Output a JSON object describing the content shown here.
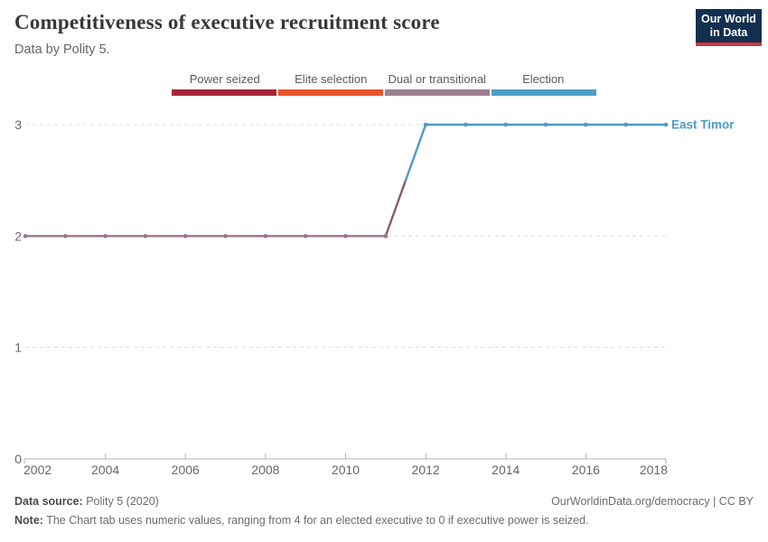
{
  "header": {
    "title": "Competitiveness of executive recruitment score",
    "subtitle": "Data by Polity 5.",
    "logo": {
      "line1": "Our World",
      "line2": "in Data",
      "bg": "#12304f",
      "stripe": "#d13640"
    }
  },
  "legend": {
    "items": [
      {
        "label": "Power seized",
        "color": "#a62639"
      },
      {
        "label": "Elite selection",
        "color": "#e8552d"
      },
      {
        "label": "Dual or transitional",
        "color": "#9d7f90"
      },
      {
        "label": "Election",
        "color": "#4f9ec9"
      }
    ]
  },
  "chart_data": {
    "type": "line",
    "title": "Competitiveness of executive recruitment score",
    "xlabel": "",
    "ylabel": "",
    "xlim": [
      2002,
      2018
    ],
    "ylim": [
      0,
      3
    ],
    "xticks": [
      2002,
      2004,
      2006,
      2008,
      2010,
      2012,
      2014,
      2016,
      2018
    ],
    "yticks": [
      0,
      1,
      2,
      3
    ],
    "grid": "horizontal-dashed",
    "grid_color": "#dcdcdc",
    "axis_color": "#b0b0b0",
    "tick_label_color": "#666666",
    "value_colors": {
      "2": "#977589",
      "3": "#4d9bc7",
      "transition": "#875a6e"
    },
    "series": [
      {
        "name": "East Timor",
        "label_color": "#4d9bc7",
        "points": [
          [
            2002,
            2
          ],
          [
            2003,
            2
          ],
          [
            2004,
            2
          ],
          [
            2005,
            2
          ],
          [
            2006,
            2
          ],
          [
            2007,
            2
          ],
          [
            2008,
            2
          ],
          [
            2009,
            2
          ],
          [
            2010,
            2
          ],
          [
            2011,
            2
          ],
          [
            2012,
            3
          ],
          [
            2013,
            3
          ],
          [
            2014,
            3
          ],
          [
            2015,
            3
          ],
          [
            2016,
            3
          ],
          [
            2017,
            3
          ],
          [
            2018,
            3
          ]
        ]
      }
    ]
  },
  "footer": {
    "source_label": "Data source:",
    "source_value": " Polity 5 (2020)",
    "link": "OurWorldinData.org/democracy | CC BY",
    "note_label": "Note:",
    "note_value": " The Chart tab uses numeric values, ranging from 4 for an elected executive to 0 if executive power is seized."
  }
}
